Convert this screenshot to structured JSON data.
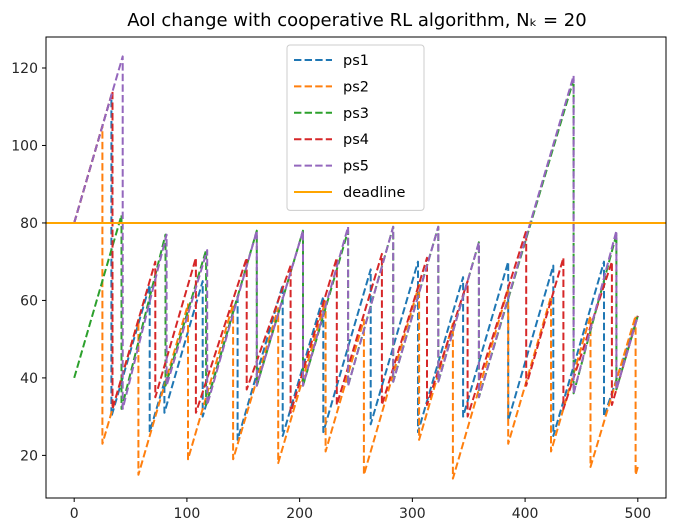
{
  "chart_data": {
    "type": "line",
    "title": "AoI change with cooperative RL algorithm, Nₖ = 20",
    "xlabel": "",
    "ylabel": "",
    "xlim": [
      -25,
      525
    ],
    "ylim": [
      9,
      128
    ],
    "xticks": [
      0,
      100,
      200,
      300,
      400,
      500
    ],
    "yticks": [
      20,
      40,
      60,
      80,
      100,
      120
    ],
    "grid": false,
    "legend_position": "upper-center",
    "deadline": {
      "name": "deadline",
      "y": 80,
      "color": "#ffa500"
    },
    "series": [
      {
        "name": "ps1",
        "color": "#1f77b4",
        "x": [
          0,
          33,
          33,
          67,
          67,
          80,
          80,
          114,
          114,
          145,
          145,
          185,
          185,
          221,
          221,
          263,
          263,
          305,
          305,
          345,
          345,
          385,
          385,
          425,
          425,
          470,
          470,
          500
        ],
        "y": [
          80,
          113,
          30,
          64,
          26,
          39,
          31,
          65,
          30,
          61,
          24,
          64,
          25,
          61,
          26,
          68,
          28,
          70,
          26,
          66,
          30,
          70,
          29,
          69,
          25,
          70,
          30,
          56
        ]
      },
      {
        "name": "ps2",
        "color": "#ff7f0e",
        "x": [
          0,
          25,
          25,
          57,
          57,
          101,
          101,
          141,
          141,
          181,
          181,
          223,
          223,
          257,
          257,
          306,
          306,
          336,
          336,
          385,
          385,
          423,
          423,
          458,
          458,
          498,
          498,
          500
        ],
        "y": [
          80,
          105,
          23,
          55,
          15,
          59,
          19,
          59,
          19,
          58,
          18,
          60,
          21,
          55,
          15,
          64,
          24,
          54,
          14,
          63,
          23,
          61,
          21,
          56,
          17,
          56,
          15,
          17
        ]
      },
      {
        "name": "ps3",
        "color": "#2ca02c",
        "x": [
          0,
          42,
          42,
          81,
          81,
          117,
          117,
          162,
          162,
          203,
          203,
          243,
          243,
          283,
          283,
          323,
          323,
          359,
          359,
          443,
          443,
          481,
          481,
          500
        ],
        "y": [
          40,
          82,
          32,
          77,
          38,
          73,
          33,
          78,
          38,
          78,
          38,
          78,
          38,
          79,
          39,
          79,
          39,
          75,
          35,
          117,
          36,
          77,
          37,
          56
        ]
      },
      {
        "name": "ps4",
        "color": "#d62728",
        "x": [
          0,
          34,
          34,
          72,
          72,
          108,
          108,
          153,
          153,
          192,
          192,
          233,
          233,
          273,
          273,
          313,
          313,
          349,
          349,
          401,
          401,
          434,
          434,
          477,
          477,
          500
        ],
        "y": [
          80,
          114,
          32,
          70,
          35,
          71,
          31,
          71,
          37,
          69,
          31,
          71,
          33,
          72,
          33,
          71,
          33,
          65,
          30,
          78,
          38,
          71,
          32,
          70,
          33,
          56
        ]
      },
      {
        "name": "ps5",
        "color": "#9467bd",
        "x": [
          0,
          43,
          43,
          82,
          82,
          118,
          118,
          162,
          162,
          203,
          203,
          243,
          243,
          283,
          283,
          323,
          323,
          359,
          359,
          443,
          443,
          481,
          481,
          500
        ],
        "y": [
          80,
          123,
          32,
          77,
          38,
          73,
          33,
          78,
          38,
          78,
          38,
          79,
          38,
          79,
          39,
          79,
          39,
          75,
          35,
          118,
          36,
          78,
          37,
          56
        ]
      }
    ]
  }
}
